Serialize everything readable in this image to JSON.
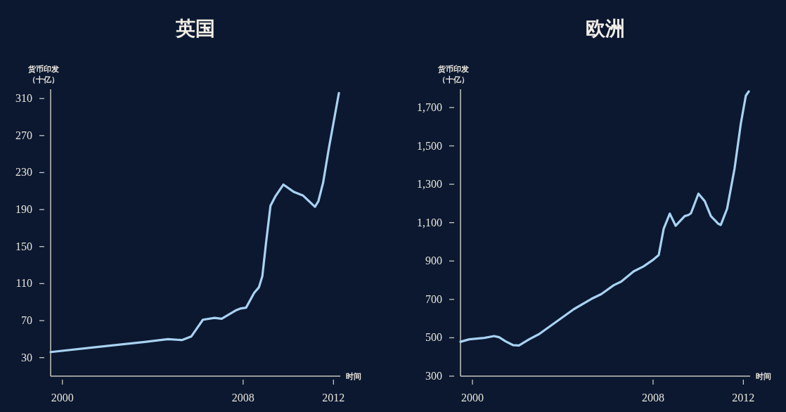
{
  "chart_data": [
    {
      "type": "line",
      "title": "英国",
      "xlabel": "时间",
      "ylabel": "货币印发（十亿）",
      "xlim": [
        1999.48,
        2012.3
      ],
      "ylim": [
        10,
        320
      ],
      "xticks": [
        2000,
        2008,
        2012
      ],
      "yticks": [
        30,
        70,
        110,
        150,
        190,
        230,
        270,
        310
      ],
      "grid": false,
      "marker": "none",
      "line_style": "solid",
      "series": [
        {
          "color": "#a9d2f2",
          "x": [
            1999.48,
            2001.37,
            2003.64,
            2004.67,
            2005.29,
            2005.71,
            2006.22,
            2006.74,
            2007.05,
            2007.67,
            2007.87,
            2008.13,
            2008.49,
            2008.7,
            2008.85,
            2009.01,
            2009.21,
            2009.42,
            2009.78,
            2010.25,
            2010.66,
            2011.18,
            2011.33,
            2011.54,
            2011.8,
            2012.24
          ],
          "values": [
            36,
            41,
            47,
            50,
            49,
            53,
            71,
            73,
            72,
            81,
            83,
            84,
            100,
            106,
            118,
            153,
            194,
            204,
            217,
            209,
            205,
            193,
            199,
            219,
            257,
            316
          ]
        }
      ]
    },
    {
      "type": "line",
      "title": "欧洲",
      "xlabel": "时间",
      "ylabel": "货币印发（十亿）",
      "xlim": [
        1999.47,
        2012.3
      ],
      "ylim": [
        300,
        1795
      ],
      "xticks": [
        2000,
        2008,
        2012
      ],
      "yticks": [
        {
          "value": 300,
          "label": "300"
        },
        {
          "value": 500,
          "label": "500"
        },
        {
          "value": 700,
          "label": "700"
        },
        {
          "value": 900,
          "label": "900"
        },
        {
          "value": 1100,
          "label": "1,100"
        },
        {
          "value": 1300,
          "label": "1,300"
        },
        {
          "value": 1500,
          "label": "1,500"
        },
        {
          "value": 1700,
          "label": "1,700"
        }
      ],
      "grid": false,
      "marker": "none",
      "line_style": "solid",
      "series": [
        {
          "color": "#a9d2f2",
          "x": [
            1999.47,
            1999.86,
            2000.52,
            2000.96,
            2001.18,
            2001.46,
            2001.79,
            2002.06,
            2002.51,
            2002.95,
            2003.72,
            2004.49,
            2005.26,
            2005.71,
            2006.26,
            2006.59,
            2007.14,
            2007.58,
            2008.02,
            2008.25,
            2008.47,
            2008.74,
            2009.0,
            2009.4,
            2009.57,
            2009.68,
            2010.01,
            2010.29,
            2010.56,
            2010.89,
            2011.0,
            2011.28,
            2011.61,
            2011.89,
            2012.11,
            2012.24
          ],
          "values": [
            479,
            492,
            499,
            509,
            503,
            482,
            462,
            460,
            492,
            519,
            584,
            649,
            702,
            728,
            774,
            793,
            846,
            872,
            908,
            931,
            1068,
            1147,
            1084,
            1134,
            1140,
            1149,
            1251,
            1212,
            1134,
            1094,
            1088,
            1173,
            1382,
            1618,
            1762,
            1784
          ]
        }
      ]
    }
  ]
}
